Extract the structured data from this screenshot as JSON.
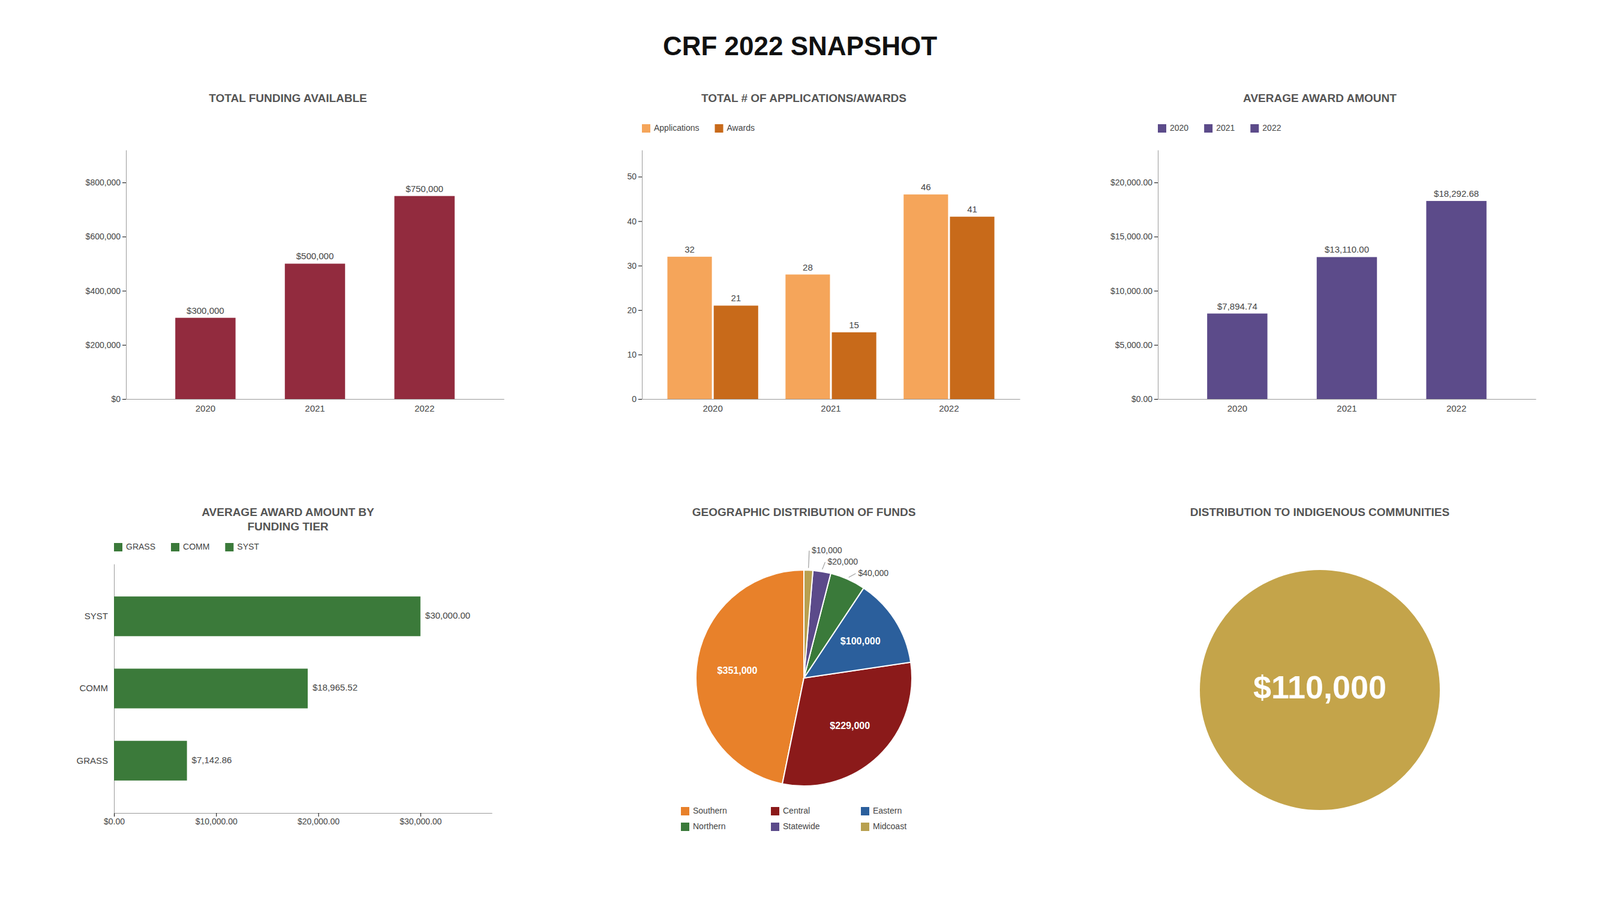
{
  "title": "CRF 2022 SNAPSHOT",
  "chart_data": [
    {
      "type": "bar",
      "title": "TOTAL FUNDING AVAILABLE",
      "categories": [
        "2020",
        "2021",
        "2022"
      ],
      "values": [
        300000,
        500000,
        750000
      ],
      "value_labels": [
        "$300,000",
        "$500,000",
        "$750,000"
      ],
      "color": "#922B3E",
      "ylim": [
        0,
        920000
      ],
      "yticks": [
        {
          "value": 0,
          "label": "$0"
        },
        {
          "value": 200000,
          "label": "$200,000"
        },
        {
          "value": 400000,
          "label": "$400,000"
        },
        {
          "value": 600000,
          "label": "$600,000"
        },
        {
          "value": 800000,
          "label": "$800,000"
        }
      ],
      "data_labels": true
    },
    {
      "type": "bar",
      "title": "TOTAL # OF APPLICATIONS/AWARDS",
      "categories": [
        "2020",
        "2021",
        "2022"
      ],
      "series": [
        {
          "name": "Applications",
          "color": "#F5A55A",
          "values": [
            32,
            28,
            46
          ]
        },
        {
          "name": "Awards",
          "color": "#C86A1A",
          "values": [
            21,
            15,
            41
          ]
        }
      ],
      "ylim": [
        0,
        56
      ],
      "yticks": [
        0,
        10,
        20,
        30,
        40,
        50
      ],
      "data_labels": true,
      "legend": "upper-left"
    },
    {
      "type": "bar",
      "title": "AVERAGE AWARD AMOUNT",
      "categories": [
        "2020",
        "2021",
        "2022"
      ],
      "values": [
        7894.74,
        13110.0,
        18292.68
      ],
      "value_labels": [
        "$7,894.74",
        "$13,110.00",
        "$18,292.68"
      ],
      "color": "#5C4B8A",
      "ylim": [
        0,
        23000
      ],
      "yticks": [
        {
          "value": 0,
          "label": "$0.00"
        },
        {
          "value": 5000,
          "label": "$5,000.00"
        },
        {
          "value": 10000,
          "label": "$10,000.00"
        },
        {
          "value": 15000,
          "label": "$15,000.00"
        },
        {
          "value": 20000,
          "label": "$20,000.00"
        }
      ],
      "data_labels": true,
      "legend": "upper-left"
    },
    {
      "type": "bar",
      "title": "AVERAGE AWARD AMOUNT BY\nFUNDING TIER",
      "orientation": "horizontal",
      "categories": [
        "GRASS",
        "COMM",
        "SYST"
      ],
      "values": [
        7142.86,
        18965.52,
        30000.0
      ],
      "value_labels": [
        "$7,142.86",
        "$18,965.52",
        "$30,000.00"
      ],
      "color": "#3B7A3A",
      "xlim": [
        0,
        37000
      ],
      "xticks": [
        {
          "value": 0,
          "label": "$0.00"
        },
        {
          "value": 10000,
          "label": "$10,000.00"
        },
        {
          "value": 20000,
          "label": "$20,000.00"
        },
        {
          "value": 30000,
          "label": "$30,000.00"
        }
      ],
      "data_labels": true,
      "legend": "upper-left"
    },
    {
      "type": "pie",
      "title": "GEOGRAPHIC DISTRIBUTION OF FUNDS",
      "categories": [
        "Southern",
        "Central",
        "Eastern",
        "Northern",
        "Statewide",
        "Midcoast"
      ],
      "values": [
        351000,
        229000,
        100000,
        40000,
        20000,
        10000
      ],
      "value_labels": [
        "$351,000",
        "$229,000",
        "$100,000",
        "$40,000",
        "$20,000",
        "$10,000"
      ],
      "colors": [
        "#E8812A",
        "#8B1A1A",
        "#2B5F9C",
        "#3A7A3A",
        "#5B4A8A",
        "#B8A050"
      ],
      "data_labels": true,
      "legend": "bottom"
    },
    {
      "type": "kpi",
      "title": "DISTRIBUTION TO INDIGENOUS COMMUNITIES",
      "values": [
        110000
      ],
      "value_labels": [
        "$110,000"
      ],
      "color": "#C4A44A",
      "data_labels": true
    }
  ]
}
